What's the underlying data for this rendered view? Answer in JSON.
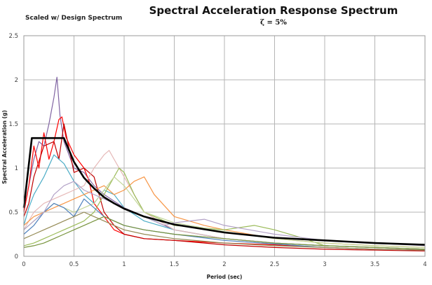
{
  "chart_data": {
    "type": "line",
    "title": "Spectral Acceleration Response Spectrum",
    "subtitle": "ζ = 5%",
    "note": "Scaled w/ Design Spectrum",
    "xlabel": "Period (sec)",
    "ylabel": "Spectral Acceleration (g)",
    "xlim": [
      0,
      4
    ],
    "ylim": [
      0,
      2.5
    ],
    "xticks": [
      "0",
      "0.5",
      "1",
      "1.5",
      "2",
      "2.5",
      "3",
      "3.5",
      "4"
    ],
    "yticks": [
      "0",
      "0.5",
      "1",
      "1.5",
      "2",
      "2.5"
    ],
    "grid": true,
    "design_spectrum": {
      "color": "#000000",
      "x": [
        0,
        0.08,
        0.4,
        0.5,
        0.6,
        0.7,
        0.8,
        0.9,
        1.0,
        1.2,
        1.5,
        2.0,
        2.5,
        3.0,
        3.5,
        4.0
      ],
      "y": [
        0.55,
        1.34,
        1.34,
        1.07,
        0.89,
        0.77,
        0.67,
        0.6,
        0.54,
        0.45,
        0.36,
        0.27,
        0.21,
        0.18,
        0.15,
        0.13
      ]
    },
    "series": [
      {
        "color": "#8064a2",
        "x": [
          0,
          0.05,
          0.1,
          0.15,
          0.2,
          0.25,
          0.3,
          0.33,
          0.36,
          0.4,
          0.5,
          0.6,
          0.7,
          0.8,
          1.0,
          1.2,
          1.5,
          2.0,
          2.5,
          3.0,
          3.5,
          4.0
        ],
        "y": [
          0.5,
          0.8,
          1.1,
          1.3,
          1.25,
          1.5,
          1.8,
          2.03,
          1.6,
          1.3,
          1.0,
          0.95,
          0.8,
          0.7,
          0.55,
          0.45,
          0.3,
          0.2,
          0.15,
          0.12,
          0.1,
          0.08
        ]
      },
      {
        "color": "#ff0000",
        "x": [
          0,
          0.05,
          0.1,
          0.15,
          0.2,
          0.25,
          0.3,
          0.35,
          0.38,
          0.42,
          0.5,
          0.6,
          0.65,
          0.7,
          0.8,
          0.9,
          1.0,
          1.2,
          1.5,
          2.0,
          2.5,
          3.0,
          3.5,
          4.0
        ],
        "y": [
          0.5,
          0.8,
          1.25,
          1.0,
          1.4,
          1.1,
          1.3,
          1.55,
          1.58,
          1.35,
          1.15,
          1.0,
          0.85,
          0.6,
          0.45,
          0.3,
          0.25,
          0.2,
          0.18,
          0.15,
          0.13,
          0.1,
          0.08,
          0.07
        ]
      },
      {
        "color": "#c00000",
        "x": [
          0,
          0.05,
          0.1,
          0.2,
          0.3,
          0.35,
          0.4,
          0.5,
          0.6,
          0.7,
          0.8,
          0.9,
          1.0,
          1.2,
          1.5,
          2.0,
          2.5,
          3.0,
          3.5,
          4.0
        ],
        "y": [
          0.45,
          0.6,
          0.9,
          1.25,
          1.3,
          1.1,
          1.5,
          0.95,
          1.0,
          0.9,
          0.5,
          0.35,
          0.25,
          0.2,
          0.18,
          0.13,
          0.1,
          0.08,
          0.07,
          0.06
        ]
      },
      {
        "color": "#4bacc6",
        "x": [
          0,
          0.05,
          0.1,
          0.2,
          0.3,
          0.4,
          0.5,
          0.6,
          0.7,
          0.8,
          0.9,
          1.0,
          1.2,
          1.5,
          2.0,
          2.5,
          3.0,
          3.5,
          4.0
        ],
        "y": [
          0.35,
          0.55,
          0.7,
          0.9,
          1.15,
          1.05,
          0.85,
          0.7,
          0.6,
          0.75,
          0.7,
          0.55,
          0.4,
          0.3,
          0.2,
          0.15,
          0.12,
          0.1,
          0.08
        ]
      },
      {
        "color": "#e6b9b8",
        "x": [
          0,
          0.05,
          0.1,
          0.2,
          0.3,
          0.4,
          0.5,
          0.6,
          0.7,
          0.8,
          0.85,
          0.9,
          1.0,
          1.1,
          1.2,
          1.5,
          2.0,
          2.5,
          3.0,
          3.5,
          4.0
        ],
        "y": [
          0.3,
          0.4,
          0.5,
          0.6,
          0.65,
          0.7,
          0.75,
          0.8,
          1.0,
          1.15,
          1.2,
          1.1,
          0.9,
          0.7,
          0.5,
          0.3,
          0.2,
          0.15,
          0.12,
          0.1,
          0.08
        ]
      },
      {
        "color": "#f79646",
        "x": [
          0,
          0.1,
          0.2,
          0.3,
          0.4,
          0.5,
          0.6,
          0.7,
          0.8,
          0.9,
          1.0,
          1.1,
          1.2,
          1.3,
          1.5,
          1.8,
          2.0,
          2.5,
          3.0,
          3.5,
          4.0
        ],
        "y": [
          0.35,
          0.45,
          0.5,
          0.55,
          0.6,
          0.65,
          0.7,
          0.75,
          0.8,
          0.7,
          0.75,
          0.85,
          0.9,
          0.7,
          0.45,
          0.35,
          0.3,
          0.2,
          0.15,
          0.12,
          0.1
        ]
      },
      {
        "color": "#9bbb59",
        "x": [
          0,
          0.1,
          0.2,
          0.3,
          0.4,
          0.5,
          0.6,
          0.7,
          0.8,
          0.9,
          0.95,
          1.0,
          1.1,
          1.2,
          1.5,
          2.0,
          2.3,
          2.5,
          2.8,
          3.0,
          3.5,
          4.0
        ],
        "y": [
          0.12,
          0.15,
          0.2,
          0.25,
          0.3,
          0.35,
          0.4,
          0.5,
          0.7,
          0.9,
          1.0,
          0.95,
          0.7,
          0.5,
          0.35,
          0.3,
          0.35,
          0.3,
          0.2,
          0.12,
          0.1,
          0.08
        ]
      },
      {
        "color": "#c3d69b",
        "x": [
          0,
          0.1,
          0.2,
          0.3,
          0.4,
          0.5,
          0.6,
          0.7,
          0.8,
          0.9,
          1.0,
          1.1,
          1.2,
          1.5,
          2.0,
          2.5,
          3.0,
          3.5,
          4.0
        ],
        "y": [
          0.3,
          0.4,
          0.5,
          0.6,
          0.55,
          0.5,
          0.55,
          0.6,
          0.75,
          0.9,
          0.8,
          0.65,
          0.5,
          0.38,
          0.28,
          0.2,
          0.15,
          0.12,
          0.1
        ]
      },
      {
        "color": "#4f81bd",
        "x": [
          0,
          0.1,
          0.2,
          0.3,
          0.4,
          0.5,
          0.6,
          0.7,
          0.8,
          0.9,
          1.0,
          1.2,
          1.5,
          2.0,
          2.5,
          3.0,
          3.5,
          4.0
        ],
        "y": [
          0.25,
          0.35,
          0.5,
          0.6,
          0.55,
          0.45,
          0.65,
          0.55,
          0.45,
          0.4,
          0.35,
          0.3,
          0.25,
          0.18,
          0.14,
          0.1,
          0.08,
          0.07
        ]
      },
      {
        "color": "#b3a2c7",
        "x": [
          0,
          0.1,
          0.2,
          0.3,
          0.4,
          0.5,
          0.6,
          0.7,
          0.8,
          0.9,
          1.0,
          1.2,
          1.4,
          1.5,
          1.8,
          2.0,
          2.5,
          3.0,
          3.5,
          4.0
        ],
        "y": [
          0.3,
          0.4,
          0.5,
          0.7,
          0.8,
          0.85,
          0.75,
          0.7,
          0.65,
          0.6,
          0.55,
          0.45,
          0.35,
          0.38,
          0.42,
          0.35,
          0.25,
          0.18,
          0.15,
          0.12
        ]
      },
      {
        "color": "#948a54",
        "x": [
          0,
          0.1,
          0.2,
          0.3,
          0.4,
          0.5,
          0.6,
          0.7,
          0.8,
          0.9,
          1.0,
          1.2,
          1.5,
          2.0,
          2.5,
          3.0,
          3.5,
          4.0
        ],
        "y": [
          0.2,
          0.25,
          0.3,
          0.35,
          0.4,
          0.45,
          0.5,
          0.45,
          0.4,
          0.35,
          0.3,
          0.25,
          0.2,
          0.15,
          0.12,
          0.1,
          0.08,
          0.07
        ]
      },
      {
        "color": "#77933c",
        "x": [
          0,
          0.1,
          0.2,
          0.3,
          0.4,
          0.5,
          0.6,
          0.7,
          0.8,
          0.9,
          1.0,
          1.2,
          1.5,
          2.0,
          2.5,
          3.0,
          3.5,
          4.0
        ],
        "y": [
          0.1,
          0.12,
          0.15,
          0.2,
          0.25,
          0.3,
          0.35,
          0.4,
          0.45,
          0.4,
          0.35,
          0.3,
          0.25,
          0.2,
          0.15,
          0.12,
          0.1,
          0.08
        ]
      }
    ]
  }
}
